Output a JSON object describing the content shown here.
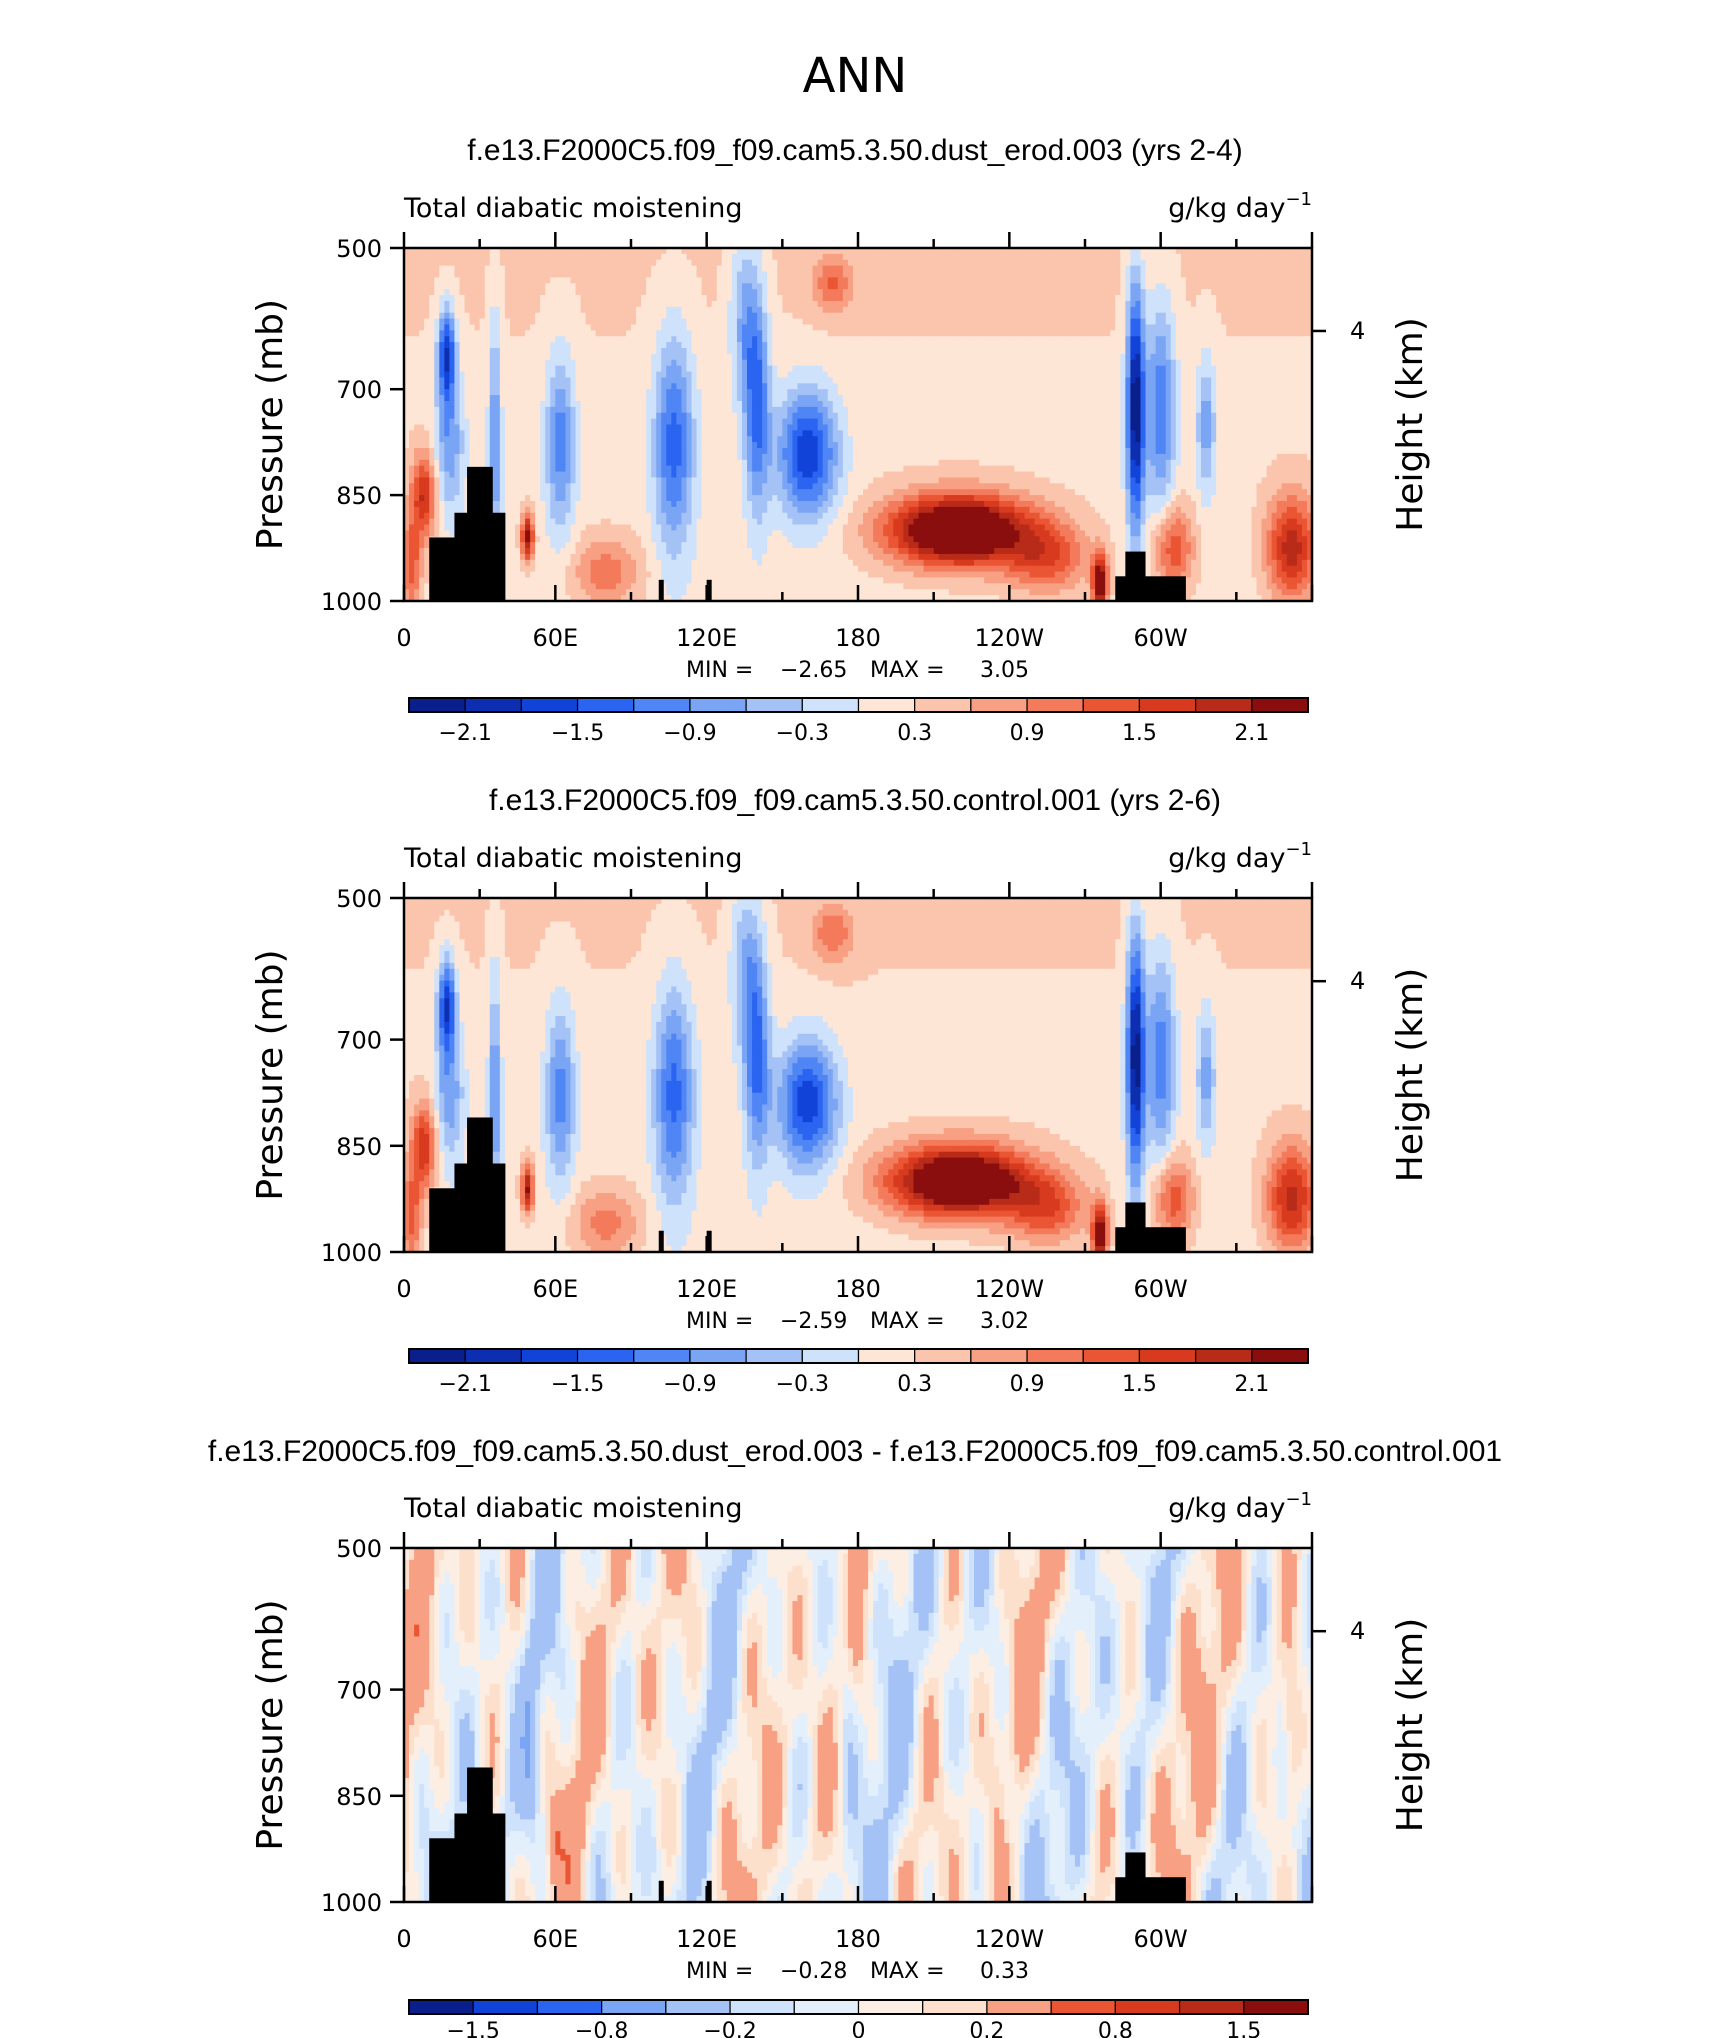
{
  "page": {
    "title": "ANN"
  },
  "chart_data": [
    {
      "type": "heatmap",
      "title": "f.e13.F2000C5.f09_f09.cam5.3.50.dust_erod.003 (yrs 2-4)",
      "left_string": "Total diabatic moistening",
      "units": "g/kg day",
      "units_exp": "−1",
      "ylabel": "Pressure (mb)",
      "y2label": "Height (km)",
      "xticks": [
        "0",
        "60E",
        "120E",
        "180",
        "120W",
        "60W"
      ],
      "yticks": [
        "500",
        "700",
        "850",
        "1000"
      ],
      "y2ticks": [
        "4"
      ],
      "min_label": "MIN =",
      "min_value": "−2.65",
      "max_label": "MAX =",
      "max_value": "3.05",
      "colorbar_labels": [
        "−2.1",
        "−1.5",
        "−0.9",
        "−0.3",
        "0.3",
        "0.9",
        "1.5",
        "2.1"
      ],
      "levels": [
        -2.4,
        -2.1,
        -1.8,
        -1.5,
        -1.2,
        -0.9,
        -0.6,
        -0.3,
        0,
        0.3,
        0.6,
        0.9,
        1.2,
        1.5,
        1.8,
        2.1,
        2.4
      ],
      "scale": 1.0
    },
    {
      "type": "heatmap",
      "title": "f.e13.F2000C5.f09_f09.cam5.3.50.control.001 (yrs 2-6)",
      "left_string": "Total diabatic moistening",
      "units": "g/kg day",
      "units_exp": "−1",
      "ylabel": "Pressure (mb)",
      "y2label": "Height (km)",
      "xticks": [
        "0",
        "60E",
        "120E",
        "180",
        "120W",
        "60W"
      ],
      "yticks": [
        "500",
        "700",
        "850",
        "1000"
      ],
      "y2ticks": [
        "4"
      ],
      "min_label": "MIN =",
      "min_value": "−2.59",
      "max_label": "MAX =",
      "max_value": "3.02",
      "colorbar_labels": [
        "−2.1",
        "−1.5",
        "−0.9",
        "−0.3",
        "0.3",
        "0.9",
        "1.5",
        "2.1"
      ],
      "levels": [
        -2.4,
        -2.1,
        -1.8,
        -1.5,
        -1.2,
        -0.9,
        -0.6,
        -0.3,
        0,
        0.3,
        0.6,
        0.9,
        1.2,
        1.5,
        1.8,
        2.1,
        2.4
      ],
      "scale": 0.97
    },
    {
      "type": "heatmap",
      "title": "f.e13.F2000C5.f09_f09.cam5.3.50.dust_erod.003 - f.e13.F2000C5.f09_f09.cam5.3.50.control.001",
      "left_string": "Total diabatic moistening",
      "units": "g/kg day",
      "units_exp": "−1",
      "ylabel": "Pressure (mb)",
      "y2label": "Height (km)",
      "xticks": [
        "0",
        "60E",
        "120E",
        "180",
        "120W",
        "60W"
      ],
      "yticks": [
        "500",
        "700",
        "850",
        "1000"
      ],
      "y2ticks": [
        "4"
      ],
      "min_label": "MIN =",
      "min_value": "−0.28",
      "max_label": "MAX =",
      "max_value": "0.33",
      "colorbar_labels": [
        "−1.5",
        "−0.8",
        "−0.2",
        "0",
        "0.2",
        "0.8",
        "1.5"
      ],
      "levels": [
        -2,
        -1.5,
        -1.2,
        -0.8,
        -0.5,
        -0.2,
        -0.1,
        0,
        0.1,
        0.2,
        0.5,
        0.8,
        1.2,
        1.5,
        2
      ],
      "scale": 0.1
    }
  ],
  "colormap": [
    "#0a1f8c",
    "#0d2eb0",
    "#1243d8",
    "#2a64f0",
    "#4f85f4",
    "#7aa4f4",
    "#a4c2f6",
    "#cfe2fb",
    "#fde6d6",
    "#fbc5ad",
    "#f8a083",
    "#f37a5b",
    "#ea5533",
    "#d83a1f",
    "#b82b18",
    "#8b0e0e"
  ],
  "colormap_diff": [
    "#0a1f8c",
    "#1243d8",
    "#2a64f0",
    "#7aa4f4",
    "#a4c2f6",
    "#cfe2fb",
    "#e4effc",
    "#fdeee3",
    "#fde0cc",
    "#f8a083",
    "#ea5533",
    "#d83a1f",
    "#b82b18",
    "#8b0e0e"
  ],
  "colors": {
    "topography": "#000000",
    "frame": "#000000"
  }
}
